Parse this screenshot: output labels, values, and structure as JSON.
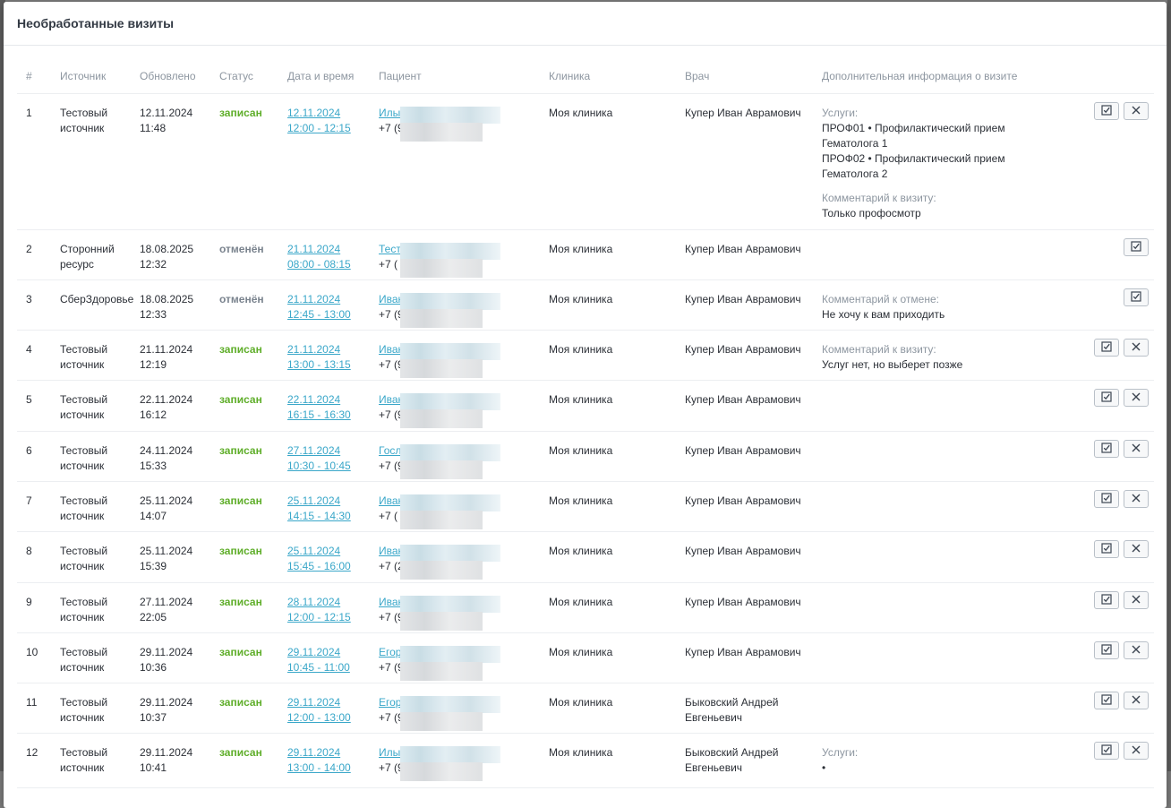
{
  "modal": {
    "title": "Необработанные визиты"
  },
  "columns": {
    "num": "#",
    "source": "Источник",
    "updated": "Обновлено",
    "status": "Статус",
    "datetime": "Дата и время",
    "patient": "Пациент",
    "clinic": "Клиника",
    "doctor": "Врач",
    "info": "Дополнительная информация о визите"
  },
  "rows": [
    {
      "num": "1",
      "source": "Тестовый источник",
      "updated_date": "12.11.2024",
      "updated_time": "11:48",
      "status": "записан",
      "status_type": "ok",
      "visit_date": "12.11.2024",
      "visit_time": "12:00 - 12:15",
      "patient_name": "Илы",
      "patient_phone": "+7 (9",
      "clinic": "Моя клиника",
      "doctor": "Купер Иван Аврамович",
      "info": [
        {
          "label": "Услуги:",
          "lines": [
            "ПРОФ01 • Профилактический прием Гематолога 1",
            "ПРОФ02 • Профилактический прием Гематолога 2"
          ]
        },
        {
          "label": "Комментарий к визиту:",
          "lines": [
            "Только профосмотр"
          ]
        }
      ],
      "actions": [
        "confirm",
        "reject"
      ],
      "height": 151
    },
    {
      "num": "2",
      "source": "Сторонний ресурс",
      "updated_date": "18.08.2025",
      "updated_time": "12:32",
      "status": "отменён",
      "status_type": "cancel",
      "visit_date": "21.11.2024",
      "visit_time": "08:00 - 08:15",
      "patient_name": "Тест",
      "patient_phone": "+7 (",
      "clinic": "Моя клиника",
      "doctor": "Купер Иван Аврамович",
      "info": [],
      "actions": [
        "confirm"
      ],
      "height": 55
    },
    {
      "num": "3",
      "source": "СберЗдоровье",
      "updated_date": "18.08.2025",
      "updated_time": "12:33",
      "status": "отменён",
      "status_type": "cancel",
      "visit_date": "21.11.2024",
      "visit_time": "12:45 - 13:00",
      "patient_name": "Иван",
      "patient_phone": "+7 (9",
      "clinic": "Моя клиника",
      "doctor": "Купер Иван Аврамович",
      "info": [
        {
          "label": "Комментарий к отмене:",
          "lines": [
            "Не хочу к вам приходить"
          ]
        }
      ],
      "actions": [
        "confirm"
      ],
      "height": 55
    },
    {
      "num": "4",
      "source": "Тестовый источник",
      "updated_date": "21.11.2024",
      "updated_time": "12:19",
      "status": "записан",
      "status_type": "ok",
      "visit_date": "21.11.2024",
      "visit_time": "13:00 - 13:15",
      "patient_name": "Иван",
      "patient_phone": "+7 (9",
      "clinic": "Моя клиника",
      "doctor": "Купер Иван Аврамович",
      "info": [
        {
          "label": "Комментарий к визиту:",
          "lines": [
            "Услуг нет, но выберет позже"
          ]
        }
      ],
      "actions": [
        "confirm",
        "reject"
      ],
      "height": 55
    },
    {
      "num": "5",
      "source": "Тестовый источник",
      "updated_date": "22.11.2024",
      "updated_time": "16:12",
      "status": "записан",
      "status_type": "ok",
      "visit_date": "22.11.2024",
      "visit_time": "16:15 - 16:30",
      "patient_name": "Иван",
      "patient_phone": "+7 (9",
      "clinic": "Моя клиника",
      "doctor": "Купер Иван Аврамович",
      "info": [],
      "actions": [
        "confirm",
        "reject"
      ],
      "height": 56
    },
    {
      "num": "6",
      "source": "Тестовый источник",
      "updated_date": "24.11.2024",
      "updated_time": "15:33",
      "status": "записан",
      "status_type": "ok",
      "visit_date": "27.11.2024",
      "visit_time": "10:30 - 10:45",
      "patient_name": "Госл",
      "patient_phone": "+7 (9",
      "clinic": "Моя клиника",
      "doctor": "Купер Иван Аврамович",
      "info": [],
      "actions": [
        "confirm",
        "reject"
      ],
      "height": 55
    },
    {
      "num": "7",
      "source": "Тестовый источник",
      "updated_date": "25.11.2024",
      "updated_time": "14:07",
      "status": "записан",
      "status_type": "ok",
      "visit_date": "25.11.2024",
      "visit_time": "14:15 - 14:30",
      "patient_name": "Иван",
      "patient_phone": "+7 (",
      "clinic": "Моя клиника",
      "doctor": "Купер Иван Аврамович",
      "info": [],
      "actions": [
        "confirm",
        "reject"
      ],
      "height": 55
    },
    {
      "num": "8",
      "source": "Тестовый источник",
      "updated_date": "25.11.2024",
      "updated_time": "15:39",
      "status": "записан",
      "status_type": "ok",
      "visit_date": "25.11.2024",
      "visit_time": "15:45 - 16:00",
      "patient_name": "Иван",
      "patient_phone": "+7 (2",
      "clinic": "Моя клиника",
      "doctor": "Купер Иван Аврамович",
      "info": [],
      "actions": [
        "confirm",
        "reject"
      ],
      "height": 56
    },
    {
      "num": "9",
      "source": "Тестовый источник",
      "updated_date": "27.11.2024",
      "updated_time": "22:05",
      "status": "записан",
      "status_type": "ok",
      "visit_date": "28.11.2024",
      "visit_time": "12:00 - 12:15",
      "patient_name": "Иван",
      "patient_phone": "+7 (9",
      "clinic": "Моя клиника",
      "doctor": "Купер Иван Аврамович",
      "info": [],
      "actions": [
        "confirm",
        "reject"
      ],
      "height": 55
    },
    {
      "num": "10",
      "source": "Тестовый источник",
      "updated_date": "29.11.2024",
      "updated_time": "10:36",
      "status": "записан",
      "status_type": "ok",
      "visit_date": "29.11.2024",
      "visit_time": "10:45 - 11:00",
      "patient_name": "Егор",
      "patient_phone": "+7 (9",
      "clinic": "Моя клиника",
      "doctor": "Купер Иван Аврамович",
      "info": [],
      "actions": [
        "confirm",
        "reject"
      ],
      "height": 55
    },
    {
      "num": "11",
      "source": "Тестовый источник",
      "updated_date": "29.11.2024",
      "updated_time": "10:37",
      "status": "записан",
      "status_type": "ok",
      "visit_date": "29.11.2024",
      "visit_time": "12:00 - 13:00",
      "patient_name": "Егор",
      "patient_phone": "+7 (9",
      "clinic": "Моя клиника",
      "doctor": "Быковский Андрей Евгеньевич",
      "info": [],
      "actions": [
        "confirm",
        "reject"
      ],
      "height": 55
    },
    {
      "num": "12",
      "source": "Тестовый источник",
      "updated_date": "29.11.2024",
      "updated_time": "10:41",
      "status": "записан",
      "status_type": "ok",
      "visit_date": "29.11.2024",
      "visit_time": "13:00 - 14:00",
      "patient_name": "Илы",
      "patient_phone": "+7 (9",
      "clinic": "Моя клиника",
      "doctor": "Быковский Андрей Евгеньевич",
      "info": [
        {
          "label": "Услуги:",
          "lines": [
            "•"
          ]
        }
      ],
      "actions": [
        "confirm",
        "reject"
      ],
      "height": 60
    }
  ],
  "icons": {
    "confirm": "checkbox-icon",
    "reject": "close-icon"
  },
  "colors": {
    "status_ok": "#5fae2a",
    "status_cancel": "#7a838e",
    "link": "#3aa7c9"
  }
}
